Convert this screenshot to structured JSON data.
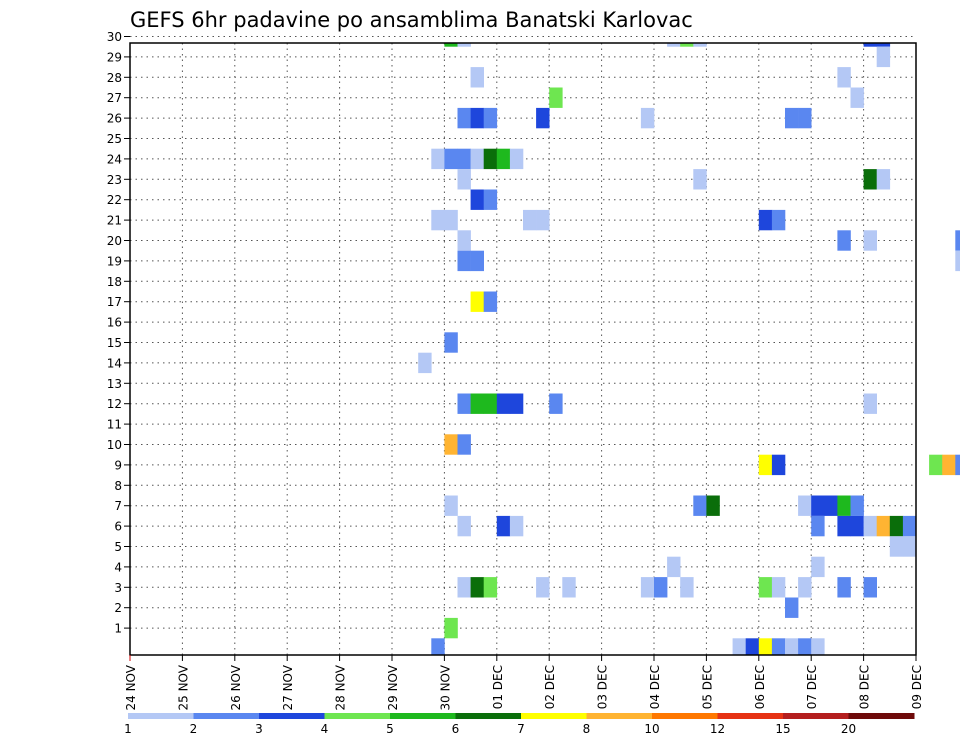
{
  "chart_data": {
    "type": "heatmap",
    "title": "GEFS 6hr padavine po ansamblima Banatski Karlovac",
    "x_tick_labels": [
      "24 NOV",
      "25 NOV",
      "26 NOV",
      "27 NOV",
      "28 NOV",
      "29 NOV",
      "30 NOV",
      "01 DEC",
      "02 DEC",
      "03 DEC",
      "04 DEC",
      "05 DEC",
      "06 DEC",
      "07 DEC",
      "08 DEC",
      "09 DEC"
    ],
    "y_tick_labels": [
      "1",
      "2",
      "3",
      "4",
      "5",
      "6",
      "7",
      "8",
      "9",
      "10",
      "11",
      "12",
      "13",
      "14",
      "15",
      "16",
      "17",
      "18",
      "19",
      "20",
      "21",
      "22",
      "23",
      "24",
      "25",
      "26",
      "27",
      "28",
      "29",
      "30"
    ],
    "x_step_hours": 6,
    "grid": true,
    "legend": {
      "placement": "bottom",
      "labels": [
        "1",
        "2",
        "3",
        "4",
        "5",
        "6",
        "7",
        "8",
        "10",
        "12",
        "15",
        "20"
      ],
      "colors": [
        "#b4c8f5",
        "#5a87f0",
        "#1e46dc",
        "#6ee650",
        "#1eb91e",
        "#0a6e0a",
        "#ffff00",
        "#ffb432",
        "#ff7800",
        "#e63214",
        "#b41e1e",
        "#6e0a0a"
      ]
    },
    "cells": [
      {
        "x": "30 Nov 00Z",
        "member": 30,
        "value": 5.5
      },
      {
        "x": "30 Nov 06Z",
        "member": 30,
        "value": 1.5
      },
      {
        "x": "04 Dec 06Z",
        "member": 30,
        "value": 1.5
      },
      {
        "x": "04 Dec 12Z",
        "member": 30,
        "value": 4.5
      },
      {
        "x": "04 Dec 18Z",
        "member": 30,
        "value": 1.5
      },
      {
        "x": "08 Dec 00Z",
        "member": 30,
        "value": 3.5
      },
      {
        "x": "08 Dec 06Z",
        "member": 30,
        "value": 3.5
      },
      {
        "x": "08 Dec 06Z",
        "member": 29,
        "value": 1.5
      },
      {
        "x": "30 Nov 12Z",
        "member": 28,
        "value": 1.5
      },
      {
        "x": "07 Dec 12Z",
        "member": 28,
        "value": 1.5
      },
      {
        "x": "02 Dec 00Z",
        "member": 27,
        "value": 4.5
      },
      {
        "x": "07 Dec 18Z",
        "member": 27,
        "value": 1.5
      },
      {
        "x": "30 Nov 06Z",
        "member": 26,
        "value": 2.5
      },
      {
        "x": "30 Nov 12Z",
        "member": 26,
        "value": 3.5
      },
      {
        "x": "30 Nov 18Z",
        "member": 26,
        "value": 2.5
      },
      {
        "x": "01 Dec 18Z",
        "member": 26,
        "value": 3.5
      },
      {
        "x": "03 Dec 18Z",
        "member": 26,
        "value": 1.5
      },
      {
        "x": "06 Dec 12Z",
        "member": 26,
        "value": 2.5
      },
      {
        "x": "06 Dec 18Z",
        "member": 26,
        "value": 2.5
      },
      {
        "x": "29 Nov 18Z",
        "member": 24,
        "value": 1.5
      },
      {
        "x": "30 Nov 00Z",
        "member": 24,
        "value": 2.5
      },
      {
        "x": "30 Nov 06Z",
        "member": 24,
        "value": 2.5
      },
      {
        "x": "30 Nov 12Z",
        "member": 24,
        "value": 1.5
      },
      {
        "x": "30 Nov 18Z",
        "member": 24,
        "value": 6.5
      },
      {
        "x": "01 Dec 00Z",
        "member": 24,
        "value": 5.5
      },
      {
        "x": "01 Dec 06Z",
        "member": 24,
        "value": 1.5
      },
      {
        "x": "30 Nov 06Z",
        "member": 23,
        "value": 1.5
      },
      {
        "x": "04 Dec 18Z",
        "member": 23,
        "value": 1.5
      },
      {
        "x": "08 Dec 00Z",
        "member": 23,
        "value": 6.5
      },
      {
        "x": "08 Dec 06Z",
        "member": 23,
        "value": 1.5
      },
      {
        "x": "30 Nov 12Z",
        "member": 22,
        "value": 3.5
      },
      {
        "x": "30 Nov 18Z",
        "member": 22,
        "value": 2.5
      },
      {
        "x": "29 Nov 18Z",
        "member": 21,
        "value": 1.5
      },
      {
        "x": "30 Nov 00Z",
        "member": 21,
        "value": 1.5
      },
      {
        "x": "01 Dec 12Z",
        "member": 21,
        "value": 1.5
      },
      {
        "x": "01 Dec 18Z",
        "member": 21,
        "value": 1.5
      },
      {
        "x": "06 Dec 00Z",
        "member": 21,
        "value": 3.5
      },
      {
        "x": "06 Dec 06Z",
        "member": 21,
        "value": 2.5
      },
      {
        "x": "30 Nov 06Z",
        "member": 20,
        "value": 1.5
      },
      {
        "x": "07 Dec 12Z",
        "member": 20,
        "value": 2.5
      },
      {
        "x": "08 Dec 00Z",
        "member": 20,
        "value": 1.5
      },
      {
        "x": "09 Dec 18Z",
        "member": 20,
        "value": 2.5
      },
      {
        "x": "30 Nov 06Z",
        "member": 19,
        "value": 2.5
      },
      {
        "x": "30 Nov 12Z",
        "member": 19,
        "value": 2.5
      },
      {
        "x": "09 Dec 18Z",
        "member": 19,
        "value": 1.5
      },
      {
        "x": "30 Nov 12Z",
        "member": 17,
        "value": 7.5
      },
      {
        "x": "30 Nov 18Z",
        "member": 17,
        "value": 2.5
      },
      {
        "x": "30 Nov 00Z",
        "member": 15,
        "value": 2.5
      },
      {
        "x": "29 Nov 12Z",
        "member": 14,
        "value": 1.5
      },
      {
        "x": "30 Nov 06Z",
        "member": 12,
        "value": 2.5
      },
      {
        "x": "30 Nov 12Z",
        "member": 12,
        "value": 5.5
      },
      {
        "x": "30 Nov 18Z",
        "member": 12,
        "value": 5.5
      },
      {
        "x": "01 Dec 00Z",
        "member": 12,
        "value": 3.5
      },
      {
        "x": "01 Dec 06Z",
        "member": 12,
        "value": 3.5
      },
      {
        "x": "02 Dec 00Z",
        "member": 12,
        "value": 2.5
      },
      {
        "x": "08 Dec 00Z",
        "member": 12,
        "value": 1.5
      },
      {
        "x": "30 Nov 00Z",
        "member": 10,
        "value": 9
      },
      {
        "x": "30 Nov 06Z",
        "member": 10,
        "value": 2.5
      },
      {
        "x": "06 Dec 00Z",
        "member": 9,
        "value": 7.5
      },
      {
        "x": "06 Dec 06Z",
        "member": 9,
        "value": 3.5
      },
      {
        "x": "09 Dec 06Z",
        "member": 9,
        "value": 4.5
      },
      {
        "x": "09 Dec 12Z",
        "member": 9,
        "value": 9
      },
      {
        "x": "09 Dec 18Z",
        "member": 9,
        "value": 2.5
      },
      {
        "x": "30 Nov 00Z",
        "member": 7,
        "value": 1.5
      },
      {
        "x": "04 Dec 18Z",
        "member": 7,
        "value": 2.5
      },
      {
        "x": "05 Dec 00Z",
        "member": 7,
        "value": 6.5
      },
      {
        "x": "06 Dec 18Z",
        "member": 7,
        "value": 1.5
      },
      {
        "x": "07 Dec 00Z",
        "member": 7,
        "value": 3.5
      },
      {
        "x": "07 Dec 06Z",
        "member": 7,
        "value": 3.5
      },
      {
        "x": "07 Dec 12Z",
        "member": 7,
        "value": 5.5
      },
      {
        "x": "07 Dec 18Z",
        "member": 7,
        "value": 2.5
      },
      {
        "x": "30 Nov 06Z",
        "member": 6,
        "value": 1.5
      },
      {
        "x": "01 Dec 00Z",
        "member": 6,
        "value": 3.5
      },
      {
        "x": "01 Dec 06Z",
        "member": 6,
        "value": 1.5
      },
      {
        "x": "07 Dec 00Z",
        "member": 6,
        "value": 2.5
      },
      {
        "x": "07 Dec 12Z",
        "member": 6,
        "value": 3.5
      },
      {
        "x": "07 Dec 18Z",
        "member": 6,
        "value": 3.5
      },
      {
        "x": "08 Dec 00Z",
        "member": 6,
        "value": 1.5
      },
      {
        "x": "08 Dec 06Z",
        "member": 6,
        "value": 9
      },
      {
        "x": "08 Dec 12Z",
        "member": 6,
        "value": 6.5
      },
      {
        "x": "08 Dec 18Z",
        "member": 6,
        "value": 2.5
      },
      {
        "x": "08 Dec 12Z",
        "member": 5,
        "value": 1.5
      },
      {
        "x": "08 Dec 18Z",
        "member": 5,
        "value": 1.5
      },
      {
        "x": "04 Dec 06Z",
        "member": 4,
        "value": 1.5
      },
      {
        "x": "07 Dec 00Z",
        "member": 4,
        "value": 1.5
      },
      {
        "x": "30 Nov 06Z",
        "member": 3,
        "value": 1.5
      },
      {
        "x": "30 Nov 12Z",
        "member": 3,
        "value": 6.5
      },
      {
        "x": "30 Nov 18Z",
        "member": 3,
        "value": 4.5
      },
      {
        "x": "01 Dec 18Z",
        "member": 3,
        "value": 1.5
      },
      {
        "x": "02 Dec 06Z",
        "member": 3,
        "value": 1.5
      },
      {
        "x": "03 Dec 18Z",
        "member": 3,
        "value": 1.5
      },
      {
        "x": "04 Dec 00Z",
        "member": 3,
        "value": 2.5
      },
      {
        "x": "04 Dec 12Z",
        "member": 3,
        "value": 1.5
      },
      {
        "x": "06 Dec 00Z",
        "member": 3,
        "value": 4.5
      },
      {
        "x": "06 Dec 06Z",
        "member": 3,
        "value": 1.5
      },
      {
        "x": "06 Dec 18Z",
        "member": 3,
        "value": 1.5
      },
      {
        "x": "07 Dec 12Z",
        "member": 3,
        "value": 2.5
      },
      {
        "x": "08 Dec 00Z",
        "member": 3,
        "value": 2.5
      },
      {
        "x": "06 Dec 12Z",
        "member": 2,
        "value": 2.5
      },
      {
        "x": "30 Nov 00Z",
        "member": 1,
        "value": 4.5
      },
      {
        "x": "29 Nov 18Z",
        "member": 0,
        "value": 2.5
      },
      {
        "x": "05 Dec 12Z",
        "member": 0,
        "value": 1.5
      },
      {
        "x": "05 Dec 18Z",
        "member": 0,
        "value": 3.5
      },
      {
        "x": "06 Dec 00Z",
        "member": 0,
        "value": 7.5
      },
      {
        "x": "06 Dec 06Z",
        "member": 0,
        "value": 2.5
      },
      {
        "x": "06 Dec 12Z",
        "member": 0,
        "value": 1.5
      },
      {
        "x": "06 Dec 18Z",
        "member": 0,
        "value": 2.5
      },
      {
        "x": "07 Dec 00Z",
        "member": 0,
        "value": 1.5
      }
    ]
  }
}
